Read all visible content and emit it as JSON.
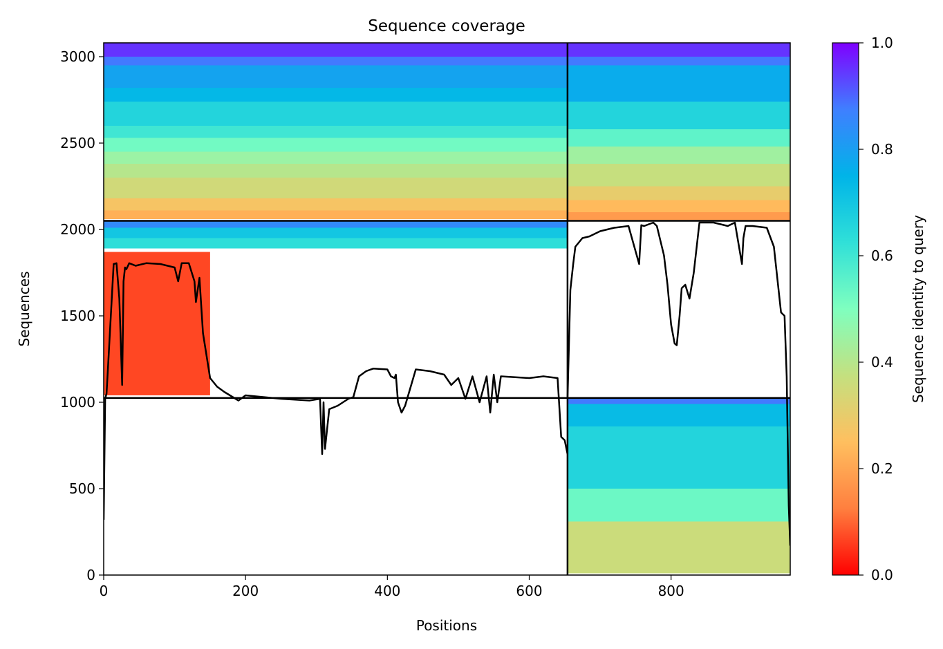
{
  "chart_data": {
    "type": "heatmap",
    "title": "Sequence coverage",
    "xlabel": "Positions",
    "ylabel": "Sequences",
    "xlim": [
      0,
      968
    ],
    "ylim": [
      0,
      3080
    ],
    "xticks": [
      0,
      200,
      400,
      600,
      800
    ],
    "yticks": [
      0,
      500,
      1000,
      1500,
      2000,
      2500,
      3000
    ],
    "grid": false,
    "colorbar": {
      "label": "Sequence identity to query",
      "colormap": "rainbow",
      "range": [
        0,
        1
      ],
      "ticks": [
        0.0,
        0.2,
        0.4,
        0.6,
        0.8,
        1.0
      ],
      "tick_labels": [
        "0.0",
        "0.2",
        "0.4",
        "0.6",
        "0.8",
        "1.0"
      ],
      "colors": [
        "#ff0000",
        "#ff7f3f",
        "#ffbf5f",
        "#c4e07f",
        "#7fffbf",
        "#30e0d8",
        "#00b4e8",
        "#3f7fff",
        "#7f00ff"
      ]
    },
    "block_boundaries": {
      "x": 654,
      "y": [
        1025,
        2050
      ]
    },
    "blocks": [
      {
        "name": "top-left",
        "x_range": [
          0,
          654
        ],
        "bands": [
          {
            "y": [
              3000,
              3080
            ],
            "identity": 0.95
          },
          {
            "y": [
              2950,
              3000
            ],
            "identity": 0.88
          },
          {
            "y": [
              2820,
              2950
            ],
            "identity": 0.79
          },
          {
            "y": [
              2740,
              2820
            ],
            "identity": 0.74
          },
          {
            "y": [
              2600,
              2740
            ],
            "identity": 0.66
          },
          {
            "y": [
              2530,
              2600
            ],
            "identity": 0.6
          },
          {
            "y": [
              2450,
              2530
            ],
            "identity": 0.52
          },
          {
            "y": [
              2380,
              2450
            ],
            "identity": 0.45
          },
          {
            "y": [
              2300,
              2380
            ],
            "identity": 0.4
          },
          {
            "y": [
              2180,
              2300
            ],
            "identity": 0.35
          },
          {
            "y": [
              2110,
              2180
            ],
            "identity": 0.27
          },
          {
            "y": [
              2060,
              2110
            ],
            "identity": 0.22
          }
        ]
      },
      {
        "name": "top-right",
        "x_range": [
          654,
          968
        ],
        "bands": [
          {
            "y": [
              3000,
              3080
            ],
            "identity": 0.95
          },
          {
            "y": [
              2950,
              3000
            ],
            "identity": 0.88
          },
          {
            "y": [
              2740,
              2950
            ],
            "identity": 0.77
          },
          {
            "y": [
              2580,
              2740
            ],
            "identity": 0.66
          },
          {
            "y": [
              2480,
              2580
            ],
            "identity": 0.55
          },
          {
            "y": [
              2380,
              2480
            ],
            "identity": 0.44
          },
          {
            "y": [
              2250,
              2380
            ],
            "identity": 0.37
          },
          {
            "y": [
              2170,
              2250
            ],
            "identity": 0.3
          },
          {
            "y": [
              2100,
              2170
            ],
            "identity": 0.24
          },
          {
            "y": [
              2055,
              2100
            ],
            "identity": 0.18
          }
        ]
      },
      {
        "name": "middle-left",
        "x_range": [
          0,
          654
        ],
        "bands": [
          {
            "y": [
              2010,
              2050
            ],
            "identity": 0.85
          },
          {
            "y": [
              1950,
              2010
            ],
            "identity": 0.7
          },
          {
            "y": [
              1890,
              1950
            ],
            "identity": 0.63
          }
        ],
        "sparse_region": {
          "x": [
            0,
            150
          ],
          "y": [
            1040,
            1870
          ],
          "identity": 0.07
        }
      },
      {
        "name": "bottom-right",
        "x_range": [
          654,
          968
        ],
        "bands": [
          {
            "y": [
              990,
              1025
            ],
            "identity": 0.88
          },
          {
            "y": [
              860,
              990
            ],
            "identity": 0.73
          },
          {
            "y": [
              500,
              860
            ],
            "identity": 0.66
          },
          {
            "y": [
              310,
              500
            ],
            "identity": 0.53
          },
          {
            "y": [
              10,
              310
            ],
            "identity": 0.36
          }
        ]
      }
    ],
    "coverage_line": {
      "x": [
        0,
        2,
        4,
        6,
        10,
        14,
        18,
        22,
        26,
        28,
        30,
        32,
        36,
        45,
        60,
        80,
        100,
        105,
        110,
        120,
        128,
        130,
        135,
        140,
        150,
        160,
        170,
        190,
        200,
        250,
        290,
        305,
        308,
        310,
        312,
        318,
        330,
        345,
        352,
        360,
        370,
        380,
        400,
        405,
        410,
        412,
        415,
        420,
        425,
        440,
        460,
        480,
        490,
        500,
        510,
        520,
        530,
        540,
        545,
        550,
        555,
        560,
        580,
        600,
        620,
        640,
        645,
        650,
        654
      ],
      "y": [
        320,
        1020,
        1050,
        1200,
        1500,
        1800,
        1805,
        1600,
        1100,
        1700,
        1780,
        1770,
        1805,
        1790,
        1805,
        1800,
        1780,
        1700,
        1805,
        1805,
        1700,
        1580,
        1720,
        1400,
        1140,
        1090,
        1060,
        1010,
        1040,
        1020,
        1010,
        1020,
        700,
        1000,
        730,
        960,
        980,
        1020,
        1030,
        1150,
        1180,
        1195,
        1190,
        1150,
        1140,
        1160,
        1000,
        940,
        980,
        1190,
        1180,
        1160,
        1100,
        1140,
        1020,
        1150,
        1000,
        1150,
        940,
        1160,
        1000,
        1150,
        1145,
        1140,
        1150,
        1140,
        800,
        780,
        700
      ]
    },
    "coverage_line_right": {
      "x": [
        654,
        658,
        662,
        665,
        675,
        685,
        700,
        720,
        740,
        755,
        758,
        762,
        775,
        780,
        790,
        795,
        800,
        805,
        808,
        812,
        815,
        820,
        826,
        832,
        840,
        860,
        880,
        890,
        900,
        902,
        905,
        915,
        935,
        945,
        955,
        960,
        963,
        966,
        968
      ],
      "y": [
        1020,
        1650,
        1800,
        1900,
        1950,
        1960,
        1990,
        2010,
        2020,
        1800,
        2025,
        2020,
        2040,
        2020,
        1850,
        1680,
        1450,
        1340,
        1330,
        1500,
        1660,
        1680,
        1600,
        1750,
        2040,
        2040,
        2020,
        2040,
        1800,
        1950,
        2020,
        2020,
        2010,
        1900,
        1520,
        1500,
        1150,
        400,
        170
      ]
    }
  }
}
